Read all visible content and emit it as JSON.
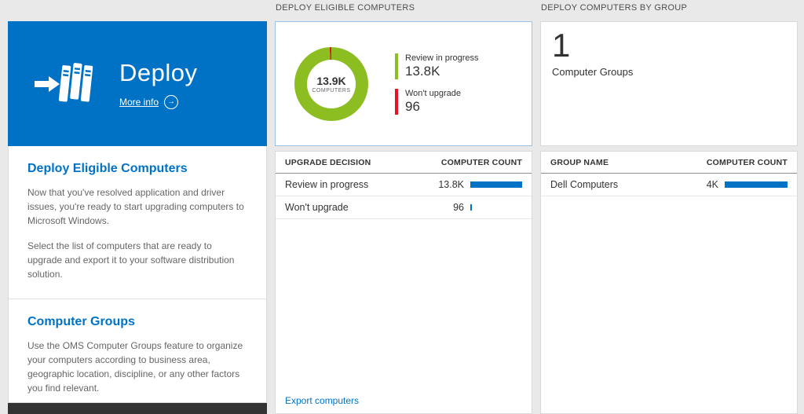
{
  "colors": {
    "accent_blue": "#0072c6",
    "green": "#8cbe21",
    "red": "#e81123",
    "bar_blue": "#0072c6"
  },
  "left_panel": {
    "title": "Deploy",
    "more_info_label": "More info",
    "sections": [
      {
        "heading": "Deploy Eligible Computers",
        "paragraphs": [
          "Now that you've resolved application and driver issues, you're ready to start upgrading computers to Microsoft Windows.",
          "Select the list of computers that are ready to upgrade and export it to your software distribution solution."
        ]
      },
      {
        "heading": "Computer Groups",
        "paragraphs": [
          "Use the OMS Computer Groups feature to organize your computers according to business area, geographic location, discipline, or any other factors you find relevant."
        ]
      }
    ]
  },
  "middle_panel": {
    "header": "DEPLOY ELIGIBLE COMPUTERS",
    "donut": {
      "center_value": "13.9K",
      "center_label": "COMPUTERS"
    },
    "legend": [
      {
        "label": "Review in progress",
        "value": "13.8K",
        "color": "#8cbe21"
      },
      {
        "label": "Won't upgrade",
        "value": "96",
        "color": "#e81123"
      }
    ],
    "table": {
      "columns": [
        "UPGRADE DECISION",
        "COMPUTER COUNT"
      ],
      "rows": [
        {
          "label": "Review in progress",
          "value": "13.8K",
          "bar_pct": 100
        },
        {
          "label": "Won't upgrade",
          "value": "96",
          "bar_pct": 2
        }
      ]
    },
    "export_link": "Export computers"
  },
  "right_panel": {
    "header": "DEPLOY COMPUTERS BY GROUP",
    "count": "1",
    "count_label": "Computer Groups",
    "table": {
      "columns": [
        "GROUP NAME",
        "COMPUTER COUNT"
      ],
      "rows": [
        {
          "label": "Dell Computers",
          "value": "4K",
          "bar_pct": 100
        }
      ]
    }
  },
  "chart_data": [
    {
      "type": "pie",
      "title": "Deploy Eligible Computers",
      "labels": [
        "Review in progress",
        "Won't upgrade"
      ],
      "values": [
        13800,
        96
      ],
      "colors": [
        "#8cbe21",
        "#e81123"
      ],
      "center_value": "13.9K",
      "center_label": "COMPUTERS",
      "legend_position": "right"
    },
    {
      "type": "table",
      "title": "Upgrade decision counts",
      "columns": [
        "UPGRADE DECISION",
        "COMPUTER COUNT"
      ],
      "rows": [
        [
          "Review in progress",
          "13.8K"
        ],
        [
          "Won't upgrade",
          "96"
        ]
      ]
    },
    {
      "type": "table",
      "title": "Deploy computers by group",
      "columns": [
        "GROUP NAME",
        "COMPUTER COUNT"
      ],
      "rows": [
        [
          "Dell Computers",
          "4K"
        ]
      ]
    }
  ]
}
